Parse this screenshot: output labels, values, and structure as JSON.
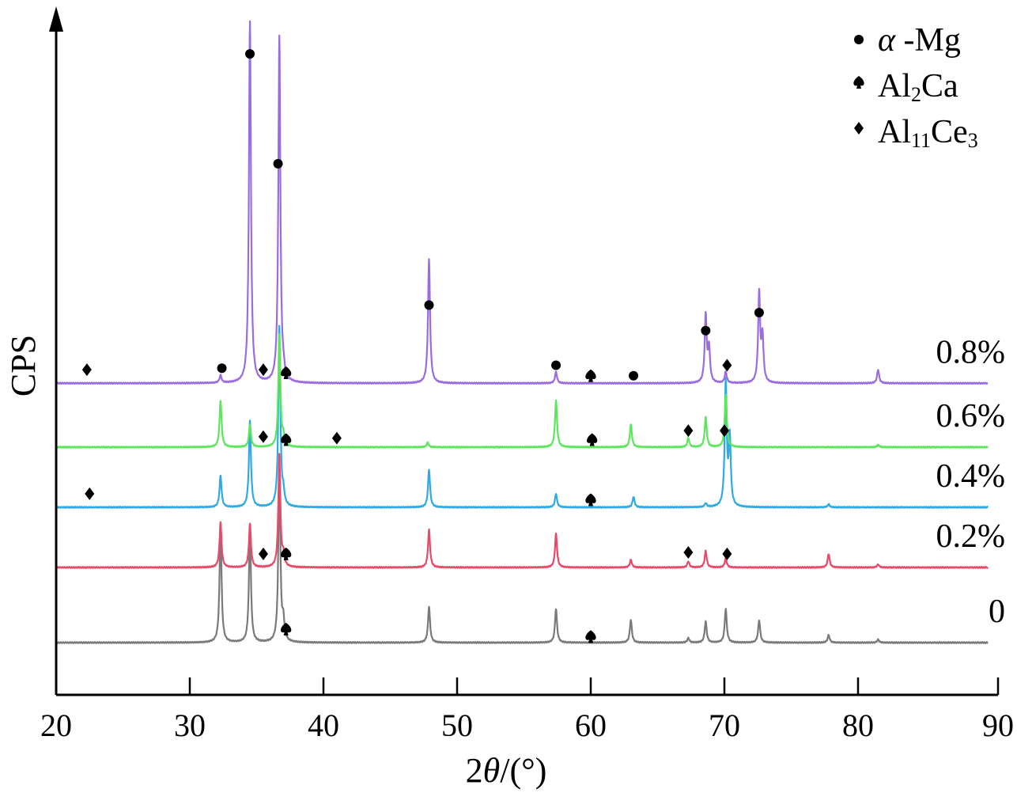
{
  "chart_data": {
    "type": "line",
    "title": "",
    "xlabel_prefix": "2",
    "xlabel_theta": "θ",
    "xlabel_unit": "/(°)",
    "ylabel": "CPS",
    "xlim": [
      20,
      90
    ],
    "xticks": [
      "20",
      "30",
      "40",
      "50",
      "60",
      "70",
      "80",
      "90"
    ],
    "grid": false,
    "legend_position": "top-right",
    "legend": [
      {
        "marker": "circle",
        "label_main": "α -Mg",
        "label_parts": [
          {
            "t": "α -Mg",
            "sub": false
          }
        ]
      },
      {
        "marker": "spade",
        "label_parts": [
          {
            "t": "Al",
            "sub": false
          },
          {
            "t": "2",
            "sub": true
          },
          {
            "t": "Ca",
            "sub": false
          }
        ]
      },
      {
        "marker": "diamond",
        "label_parts": [
          {
            "t": "Al",
            "sub": false
          },
          {
            "t": "11",
            "sub": true
          },
          {
            "t": "Ce",
            "sub": false
          },
          {
            "t": "3",
            "sub": true
          }
        ]
      }
    ],
    "series": [
      {
        "name": "0",
        "color": "#7a7a7a",
        "baseline": 0,
        "peaks": [
          [
            32.3,
            155
          ],
          [
            34.5,
            150
          ],
          [
            36.7,
            230
          ],
          [
            37.0,
            25
          ],
          [
            47.9,
            48
          ],
          [
            57.4,
            45
          ],
          [
            63.0,
            30
          ],
          [
            67.3,
            6
          ],
          [
            68.6,
            28
          ],
          [
            70.1,
            45
          ],
          [
            72.6,
            30
          ],
          [
            77.8,
            10
          ],
          [
            81.5,
            4
          ]
        ],
        "markers": [
          {
            "type": "spade",
            "x": 37.2,
            "y": 18
          },
          {
            "type": "spade",
            "x": 60.0,
            "y": 8
          }
        ]
      },
      {
        "name": "0.2%",
        "color": "#e84a6a",
        "baseline": 100,
        "peaks": [
          [
            32.3,
            60
          ],
          [
            34.5,
            58
          ],
          [
            36.7,
            150
          ],
          [
            37.0,
            15
          ],
          [
            47.9,
            50
          ],
          [
            57.4,
            45
          ],
          [
            63.0,
            10
          ],
          [
            67.3,
            8
          ],
          [
            68.6,
            22
          ],
          [
            70.1,
            12
          ],
          [
            77.8,
            18
          ],
          [
            81.5,
            4
          ]
        ],
        "markers": [
          {
            "type": "diamond",
            "x": 35.5,
            "y": 18
          },
          {
            "type": "spade",
            "x": 37.2,
            "y": 18
          },
          {
            "type": "diamond",
            "x": 67.3,
            "y": 20
          },
          {
            "type": "diamond",
            "x": 70.2,
            "y": 18
          }
        ]
      },
      {
        "name": "0.4%",
        "color": "#2eaae6",
        "baseline": 180,
        "peaks": [
          [
            32.3,
            42
          ],
          [
            34.5,
            115
          ],
          [
            36.7,
            240
          ],
          [
            37.0,
            15
          ],
          [
            47.9,
            50
          ],
          [
            57.4,
            18
          ],
          [
            63.2,
            14
          ],
          [
            68.6,
            5
          ],
          [
            70.1,
            165
          ],
          [
            70.4,
            90
          ],
          [
            77.8,
            4
          ]
        ],
        "markers": [
          {
            "type": "diamond",
            "x": 22.5,
            "y": 18
          },
          {
            "type": "spade",
            "x": 60.0,
            "y": 10
          }
        ]
      },
      {
        "name": "0.6%",
        "color": "#5ce65c",
        "baseline": 260,
        "peaks": [
          [
            32.3,
            62
          ],
          [
            34.5,
            30
          ],
          [
            36.7,
            150
          ],
          [
            37.0,
            12
          ],
          [
            47.8,
            6
          ],
          [
            57.4,
            62
          ],
          [
            63.0,
            30
          ],
          [
            67.3,
            12
          ],
          [
            68.6,
            40
          ],
          [
            70.1,
            70
          ],
          [
            81.5,
            3
          ]
        ],
        "markers": [
          {
            "type": "diamond",
            "x": 35.5,
            "y": 14
          },
          {
            "type": "spade",
            "x": 37.2,
            "y": 10
          },
          {
            "type": "diamond",
            "x": 41.0,
            "y": 12
          },
          {
            "type": "spade",
            "x": 60.1,
            "y": 10
          },
          {
            "type": "diamond",
            "x": 67.3,
            "y": 22
          },
          {
            "type": "diamond",
            "x": 70.0,
            "y": 22
          }
        ]
      },
      {
        "name": "0.8%",
        "color": "#9a6ce0",
        "baseline": 345,
        "peaks": [
          [
            32.3,
            10
          ],
          [
            34.5,
            480
          ],
          [
            36.7,
            460
          ],
          [
            37.0,
            10
          ],
          [
            47.9,
            165
          ],
          [
            57.4,
            15
          ],
          [
            68.6,
            90
          ],
          [
            68.85,
            45
          ],
          [
            70.1,
            15
          ],
          [
            72.6,
            118
          ],
          [
            72.85,
            60
          ],
          [
            81.5,
            18
          ]
        ],
        "markers": [
          {
            "type": "diamond",
            "x": 22.3,
            "y": 18
          },
          {
            "type": "circle",
            "x": 32.4,
            "y": 20
          },
          {
            "type": "circle",
            "x": 34.5,
            "y": 438
          },
          {
            "type": "diamond",
            "x": 35.5,
            "y": 18
          },
          {
            "type": "circle",
            "x": 36.6,
            "y": 292
          },
          {
            "type": "spade",
            "x": 37.2,
            "y": 14
          },
          {
            "type": "circle",
            "x": 47.9,
            "y": 104
          },
          {
            "type": "circle",
            "x": 57.4,
            "y": 24
          },
          {
            "type": "spade",
            "x": 60.0,
            "y": 10
          },
          {
            "type": "circle",
            "x": 63.2,
            "y": 10
          },
          {
            "type": "circle",
            "x": 68.6,
            "y": 70
          },
          {
            "type": "diamond",
            "x": 70.2,
            "y": 24
          },
          {
            "type": "circle",
            "x": 72.6,
            "y": 94
          }
        ]
      }
    ]
  }
}
